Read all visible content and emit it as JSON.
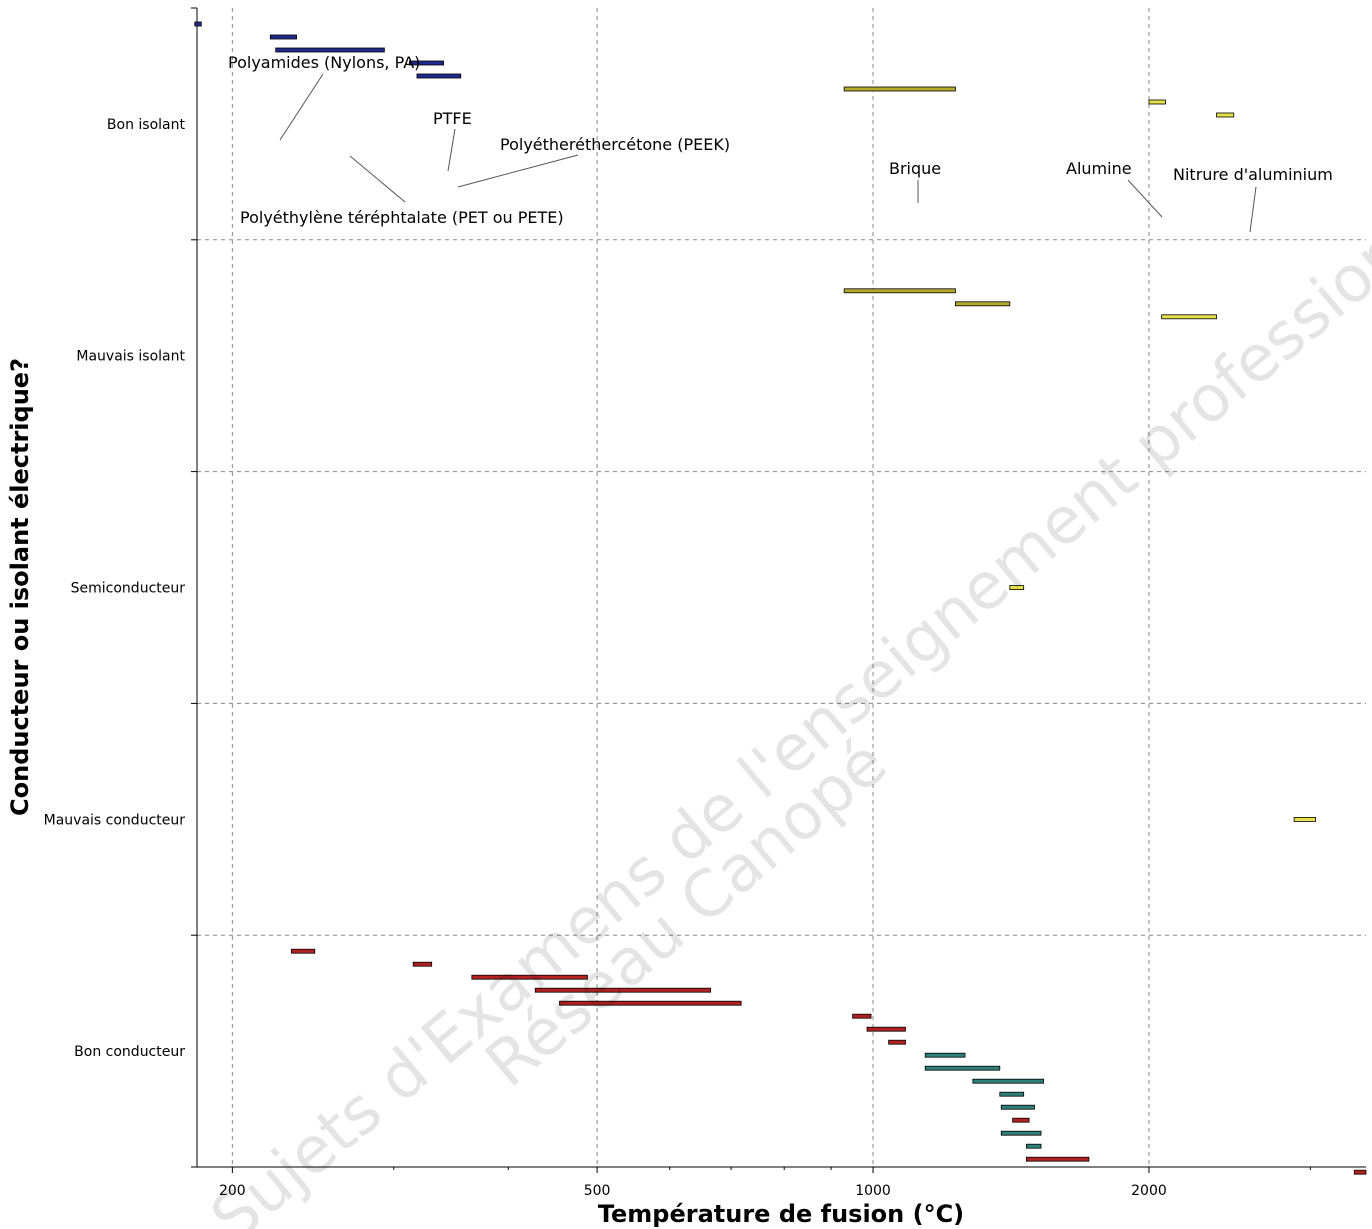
{
  "chart_data": {
    "type": "bar",
    "xlabel": "Température de fusion (°C)",
    "ylabel": "Conducteur ou isolant électrique?",
    "x_scale": "log",
    "xlim": [
      183,
      3450
    ],
    "x_ticks": [
      200,
      500,
      1000,
      2000
    ],
    "grid": true,
    "categories": [
      "Bon isolant",
      "Mauvais isolant",
      "Semiconducteur",
      "Mauvais conducteur",
      "Bon conducteur"
    ],
    "colors": {
      "polymer": "#1f2a8c",
      "ceramic": "#b5a82a",
      "ceramic_light": "#e6e04a",
      "metal": "#b22222",
      "metal2": "#2f7f7a"
    },
    "bars": [
      {
        "category": "Bon isolant",
        "x": [
          182,
          185
        ],
        "color": "polymer"
      },
      {
        "category": "Bon isolant",
        "x": [
          220,
          235
        ],
        "color": "polymer"
      },
      {
        "category": "Bon isolant",
        "x": [
          223,
          293
        ],
        "color": "polymer"
      },
      {
        "category": "Bon isolant",
        "x": [
          312,
          340
        ],
        "color": "polymer"
      },
      {
        "category": "Bon isolant",
        "x": [
          318,
          355
        ],
        "color": "polymer"
      },
      {
        "category": "Bon isolant",
        "x": [
          930,
          1230
        ],
        "color": "ceramic"
      },
      {
        "category": "Bon isolant",
        "x": [
          2000,
          2085
        ],
        "color": "ceramic_light"
      },
      {
        "category": "Bon isolant",
        "x": [
          2370,
          2475
        ],
        "color": "ceramic_light"
      },
      {
        "category": "Mauvais isolant",
        "x": [
          930,
          1230
        ],
        "color": "ceramic"
      },
      {
        "category": "Mauvais isolant",
        "x": [
          1230,
          1410
        ],
        "color": "ceramic"
      },
      {
        "category": "Mauvais isolant",
        "x": [
          2065,
          2370
        ],
        "color": "ceramic_light"
      },
      {
        "category": "Semiconducteur",
        "x": [
          1410,
          1460
        ],
        "color": "ceramic_light"
      },
      {
        "category": "Mauvais conducteur",
        "x": [
          2880,
          3040
        ],
        "color": "ceramic_light"
      },
      {
        "category": "Bon conducteur",
        "x": [
          232,
          246
        ],
        "color": "metal"
      },
      {
        "category": "Bon conducteur",
        "x": [
          315,
          330
        ],
        "color": "metal"
      },
      {
        "category": "Bon conducteur",
        "x": [
          365,
          488
        ],
        "color": "metal"
      },
      {
        "category": "Bon conducteur",
        "x": [
          428,
          665
        ],
        "color": "metal"
      },
      {
        "category": "Bon conducteur",
        "x": [
          455,
          718
        ],
        "color": "metal"
      },
      {
        "category": "Bon conducteur",
        "x": [
          950,
          995
        ],
        "color": "metal"
      },
      {
        "category": "Bon conducteur",
        "x": [
          985,
          1085
        ],
        "color": "metal"
      },
      {
        "category": "Bon conducteur",
        "x": [
          1040,
          1085
        ],
        "color": "metal"
      },
      {
        "category": "Bon conducteur",
        "x": [
          1140,
          1260
        ],
        "color": "metal2"
      },
      {
        "category": "Bon conducteur",
        "x": [
          1140,
          1375
        ],
        "color": "metal2"
      },
      {
        "category": "Bon conducteur",
        "x": [
          1285,
          1535
        ],
        "color": "metal2"
      },
      {
        "category": "Bon conducteur",
        "x": [
          1375,
          1460
        ],
        "color": "metal2"
      },
      {
        "category": "Bon conducteur",
        "x": [
          1380,
          1500
        ],
        "color": "metal2"
      },
      {
        "category": "Bon conducteur",
        "x": [
          1420,
          1480
        ],
        "color": "metal"
      },
      {
        "category": "Bon conducteur",
        "x": [
          1380,
          1525
        ],
        "color": "metal2"
      },
      {
        "category": "Bon conducteur",
        "x": [
          1470,
          1525
        ],
        "color": "metal2"
      },
      {
        "category": "Bon conducteur",
        "x": [
          1470,
          1720
        ],
        "color": "metal"
      },
      {
        "category": "Bon conducteur",
        "x": [
          3350,
          3450
        ],
        "color": "metal"
      }
    ],
    "annotations": [
      "Polyamides (Nylons, PA)",
      "PTFE",
      "Polyétheréthercétone (PEEK)",
      "Polyéthylène téréphtalate (PET ou PETE)",
      "Brique",
      "Alumine",
      "Nitrure d'aluminium"
    ]
  },
  "watermark": [
    "Sujets d'Examens de l'enseignement professionnel",
    "Réseau Canopé"
  ]
}
